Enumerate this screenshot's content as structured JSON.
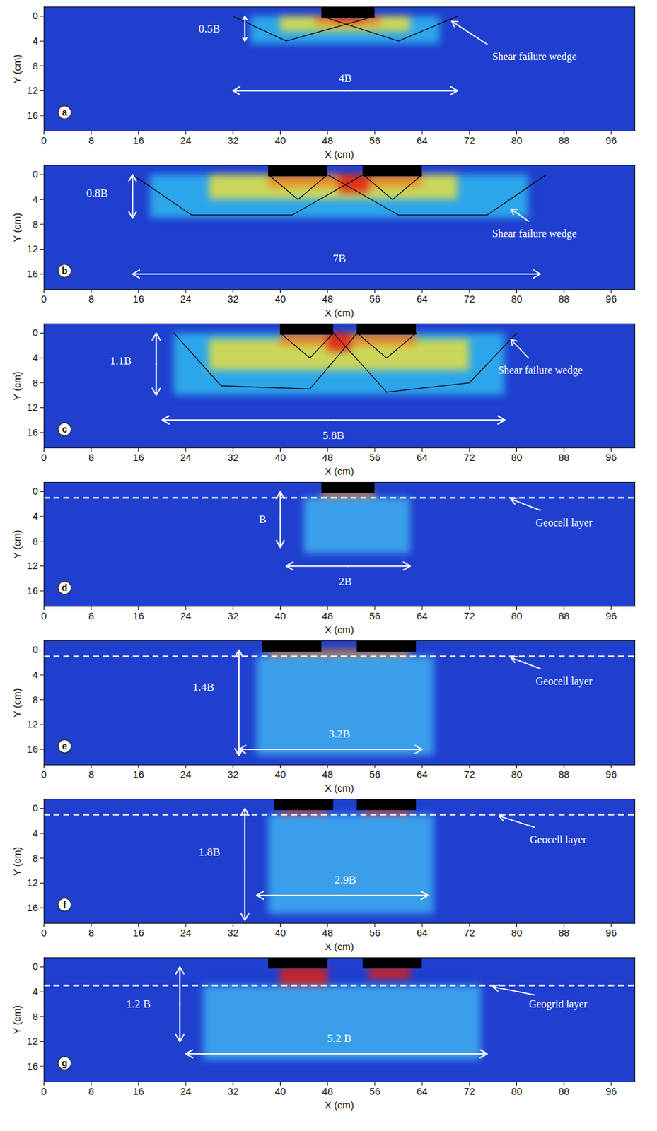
{
  "chart_data": [
    {
      "type": "field",
      "panel": "a",
      "xlabel": "X (cm)",
      "ylabel": "Y (cm)",
      "xlim": [
        0,
        100
      ],
      "ylim": [
        -1.5,
        18.5
      ],
      "xticks": [
        0,
        8,
        16,
        24,
        32,
        40,
        48,
        56,
        64,
        72,
        80,
        88,
        96
      ],
      "yticks": [
        0,
        4,
        8,
        12,
        16
      ],
      "color": "#1f3fcf",
      "zones": [
        {
          "x1": 35,
          "x2": 67,
          "y1": 0,
          "y2": 4.5,
          "color": "#2fb8f0"
        },
        {
          "x1": 40,
          "x2": 62,
          "y1": 0,
          "y2": 2.5,
          "color": "#e8e040"
        },
        {
          "x1": 46,
          "x2": 57,
          "y1": 0,
          "y2": 1.5,
          "color": "#f08020"
        },
        {
          "x1": 49,
          "x2": 54,
          "y1": 0,
          "y2": 1,
          "color": "#e02010"
        }
      ],
      "footings": [
        {
          "x1": 47,
          "x2": 56,
          "y1": -1.5,
          "y2": 0.3
        }
      ],
      "wedges": [
        [
          [
            32,
            0
          ],
          [
            41,
            4
          ],
          [
            56,
            0
          ]
        ],
        [
          [
            47,
            0
          ],
          [
            60,
            4
          ],
          [
            70,
            0
          ]
        ]
      ],
      "dimensions": [
        {
          "label": "0.5B",
          "x1": 34,
          "y1": 0,
          "x2": 34,
          "y2": 4,
          "label_x": 28,
          "label_y": 2
        },
        {
          "label": "4B",
          "x1": 32,
          "x2": 70,
          "y1": 12,
          "y2": 12,
          "label_x": 51,
          "label_y": 10
        }
      ],
      "annotations": [
        {
          "text": "Shear failure wedge",
          "x": 83,
          "y": 6.5,
          "arrow": [
            75,
            4.5,
            69,
            0.8
          ]
        }
      ]
    },
    {
      "type": "field",
      "panel": "b",
      "xlabel": "X (cm)",
      "ylabel": "Y (cm)",
      "xlim": [
        0,
        100
      ],
      "ylim": [
        -1.5,
        18.5
      ],
      "xticks": [
        0,
        8,
        16,
        24,
        32,
        40,
        48,
        56,
        64,
        72,
        80,
        88,
        96
      ],
      "yticks": [
        0,
        4,
        8,
        12,
        16
      ],
      "color": "#1f3fcf",
      "zones": [
        {
          "x1": 18,
          "x2": 82,
          "y1": 0,
          "y2": 7,
          "color": "#2fb8f0"
        },
        {
          "x1": 28,
          "x2": 70,
          "y1": 0,
          "y2": 4,
          "color": "#e8e040"
        },
        {
          "x1": 38,
          "x2": 64,
          "y1": 0,
          "y2": 2,
          "color": "#f08020"
        },
        {
          "x1": 50,
          "x2": 55,
          "y1": 0,
          "y2": 3,
          "color": "#e02010"
        }
      ],
      "footings": [
        {
          "x1": 38,
          "x2": 48,
          "y1": -1.5,
          "y2": 0.3
        },
        {
          "x1": 54,
          "x2": 64,
          "y1": -1.5,
          "y2": 0.3
        }
      ],
      "wedges": [
        [
          [
            15,
            0
          ],
          [
            25,
            6.5
          ],
          [
            42,
            6.5
          ],
          [
            54,
            0
          ]
        ],
        [
          [
            48,
            0
          ],
          [
            60,
            6.5
          ],
          [
            75,
            6.5
          ],
          [
            85,
            0
          ]
        ],
        [
          [
            38,
            0
          ],
          [
            43,
            4
          ],
          [
            48,
            0
          ]
        ],
        [
          [
            54,
            0
          ],
          [
            59,
            4
          ],
          [
            64,
            0
          ]
        ]
      ],
      "dimensions": [
        {
          "label": "0.8B",
          "x1": 15,
          "y1": 0,
          "x2": 15,
          "y2": 7,
          "label_x": 9,
          "label_y": 3
        },
        {
          "label": "7B",
          "x1": 15,
          "x2": 84,
          "y1": 16,
          "y2": 16,
          "label_x": 50,
          "label_y": 13.5
        }
      ],
      "annotations": [
        {
          "text": "Shear failure wedge",
          "x": 83,
          "y": 9.5,
          "arrow": [
            82,
            7.5,
            79,
            5.5
          ]
        }
      ]
    },
    {
      "type": "field",
      "panel": "c",
      "xlabel": "X (cm)",
      "ylabel": "Y (cm)",
      "xlim": [
        0,
        100
      ],
      "ylim": [
        -1.5,
        18.5
      ],
      "xticks": [
        0,
        8,
        16,
        24,
        32,
        40,
        48,
        56,
        64,
        72,
        80,
        88,
        96
      ],
      "yticks": [
        0,
        4,
        8,
        12,
        16
      ],
      "color": "#1f3fcf",
      "zones": [
        {
          "x1": 22,
          "x2": 78,
          "y1": 0,
          "y2": 10,
          "color": "#2fb8f0"
        },
        {
          "x1": 28,
          "x2": 72,
          "y1": 1,
          "y2": 6,
          "color": "#e8e040"
        },
        {
          "x1": 40,
          "x2": 63,
          "y1": 0,
          "y2": 2,
          "color": "#f08020"
        },
        {
          "x1": 48,
          "x2": 52,
          "y1": 0,
          "y2": 3,
          "color": "#e02010"
        }
      ],
      "footings": [
        {
          "x1": 40,
          "x2": 49,
          "y1": -1.5,
          "y2": 0.3
        },
        {
          "x1": 53,
          "x2": 63,
          "y1": -1.5,
          "y2": 0.3
        }
      ],
      "wedges": [
        [
          [
            22,
            0
          ],
          [
            30,
            8.5
          ],
          [
            45,
            9
          ],
          [
            53,
            0
          ]
        ],
        [
          [
            49,
            0
          ],
          [
            58,
            9.5
          ],
          [
            72,
            8
          ],
          [
            80,
            0
          ]
        ],
        [
          [
            40,
            0
          ],
          [
            45,
            4
          ],
          [
            49,
            0
          ]
        ],
        [
          [
            53,
            0
          ],
          [
            58,
            4
          ],
          [
            63,
            0
          ]
        ]
      ],
      "dimensions": [
        {
          "label": "1.1B",
          "x1": 19,
          "y1": 0,
          "x2": 19,
          "y2": 10,
          "label_x": 13,
          "label_y": 4.5
        },
        {
          "label": "5.8B",
          "x1": 20,
          "x2": 78,
          "y1": 14,
          "y2": 14,
          "label_x": 49,
          "label_y": 16.5
        }
      ],
      "annotations": [
        {
          "text": "Shear failure wedge",
          "x": 84,
          "y": 6,
          "arrow": [
            82,
            4,
            79,
            1
          ]
        }
      ]
    },
    {
      "type": "field",
      "panel": "d",
      "xlabel": "X (cm)",
      "ylabel": "Y (cm)",
      "xlim": [
        0,
        100
      ],
      "ylim": [
        -1.5,
        18.5
      ],
      "xticks": [
        0,
        8,
        16,
        24,
        32,
        40,
        48,
        56,
        64,
        72,
        80,
        88,
        96
      ],
      "yticks": [
        0,
        4,
        8,
        12,
        16
      ],
      "color": "#1f3fcf",
      "zones": [
        {
          "x1": 44,
          "x2": 62,
          "y1": 1,
          "y2": 10,
          "color": "#40b0f0"
        },
        {
          "x1": 47,
          "x2": 56,
          "y1": 0,
          "y2": 1,
          "color": "#f08020"
        }
      ],
      "footings": [
        {
          "x1": 47,
          "x2": 56,
          "y1": -1.5,
          "y2": 0.3
        }
      ],
      "wedges": [],
      "layer": {
        "label": "Geocell layer",
        "y": 1,
        "line_style": "dashed"
      },
      "dimensions": [
        {
          "label": "B",
          "x1": 40,
          "y1": 0,
          "x2": 40,
          "y2": 9,
          "label_x": 37,
          "label_y": 4.5
        },
        {
          "label": "2B",
          "x1": 41,
          "x2": 62,
          "y1": 12,
          "y2": 12,
          "label_x": 51,
          "label_y": 14.5
        }
      ],
      "annotations": [
        {
          "text": "Geocell layer",
          "x": 88,
          "y": 5,
          "arrow": [
            84,
            3,
            79,
            1.2
          ]
        }
      ]
    },
    {
      "type": "field",
      "panel": "e",
      "xlabel": "X (cm)",
      "ylabel": "Y (cm)",
      "xlim": [
        0,
        100
      ],
      "ylim": [
        -1.5,
        18.5
      ],
      "xticks": [
        0,
        8,
        16,
        24,
        32,
        40,
        48,
        56,
        64,
        72,
        80,
        88,
        96
      ],
      "yticks": [
        0,
        4,
        8,
        12,
        16
      ],
      "color": "#1f3fcf",
      "zones": [
        {
          "x1": 36,
          "x2": 66,
          "y1": 1,
          "y2": 17,
          "color": "#40b0f0"
        },
        {
          "x1": 38,
          "x2": 62,
          "y1": 0,
          "y2": 1,
          "color": "#f08020"
        }
      ],
      "footings": [
        {
          "x1": 37,
          "x2": 47,
          "y1": -1.5,
          "y2": 0.3
        },
        {
          "x1": 53,
          "x2": 63,
          "y1": -1.5,
          "y2": 0.3
        }
      ],
      "wedges": [],
      "layer": {
        "label": "Geocell layer",
        "y": 1,
        "line_style": "dashed"
      },
      "dimensions": [
        {
          "label": "1.4B",
          "x1": 33,
          "y1": 0,
          "x2": 33,
          "y2": 17,
          "label_x": 27,
          "label_y": 6
        },
        {
          "label": "3.2B",
          "x1": 33,
          "x2": 64,
          "y1": 16,
          "y2": 16,
          "label_x": 50,
          "label_y": 13.5
        }
      ],
      "annotations": [
        {
          "text": "Geocell layer",
          "x": 88,
          "y": 5,
          "arrow": [
            84,
            3,
            79,
            1.2
          ]
        }
      ]
    },
    {
      "type": "field",
      "panel": "f",
      "xlabel": "X (cm)",
      "ylabel": "Y (cm)",
      "xlim": [
        0,
        100
      ],
      "ylim": [
        -1.5,
        18.5
      ],
      "xticks": [
        0,
        8,
        16,
        24,
        32,
        40,
        48,
        56,
        64,
        72,
        80,
        88,
        96
      ],
      "yticks": [
        0,
        4,
        8,
        12,
        16
      ],
      "color": "#1f3fcf",
      "zones": [
        {
          "x1": 38,
          "x2": 66,
          "y1": 1,
          "y2": 17,
          "color": "#40b0f0"
        },
        {
          "x1": 40,
          "x2": 48,
          "y1": 0,
          "y2": 1,
          "color": "#e02010"
        },
        {
          "x1": 54,
          "x2": 62,
          "y1": 0,
          "y2": 1,
          "color": "#e02010"
        }
      ],
      "footings": [
        {
          "x1": 39,
          "x2": 49,
          "y1": -1.5,
          "y2": 0.3
        },
        {
          "x1": 53,
          "x2": 63,
          "y1": -1.5,
          "y2": 0.3
        }
      ],
      "wedges": [],
      "layer": {
        "label": "Geocell layer",
        "y": 1,
        "line_style": "dashed"
      },
      "dimensions": [
        {
          "label": "1.8B",
          "x1": 34,
          "y1": 0,
          "x2": 34,
          "y2": 18,
          "label_x": 28,
          "label_y": 7
        },
        {
          "label": "2.9B",
          "x1": 36,
          "x2": 65,
          "y1": 14,
          "y2": 14,
          "label_x": 51,
          "label_y": 11.5
        }
      ],
      "annotations": [
        {
          "text": "Geocell layer",
          "x": 87,
          "y": 5,
          "arrow": [
            83,
            3,
            77,
            1.2
          ]
        }
      ]
    },
    {
      "type": "field",
      "panel": "g",
      "xlabel": "X (cm)",
      "ylabel": "Y (cm)",
      "xlim": [
        0,
        100
      ],
      "ylim": [
        -1.5,
        18.5
      ],
      "xticks": [
        0,
        8,
        16,
        24,
        32,
        40,
        48,
        56,
        64,
        72,
        80,
        88,
        96
      ],
      "yticks": [
        0,
        4,
        8,
        12,
        16
      ],
      "color": "#1f3fcf",
      "zones": [
        {
          "x1": 27,
          "x2": 74,
          "y1": 3,
          "y2": 15,
          "color": "#40b0f0"
        },
        {
          "x1": 40,
          "x2": 48,
          "y1": 0,
          "y2": 3,
          "color": "#e02010"
        },
        {
          "x1": 55,
          "x2": 62,
          "y1": 0,
          "y2": 2,
          "color": "#e02010"
        }
      ],
      "footings": [
        {
          "x1": 38,
          "x2": 48,
          "y1": -1.5,
          "y2": 0.3
        },
        {
          "x1": 54,
          "x2": 64,
          "y1": -1.5,
          "y2": 0.3
        }
      ],
      "wedges": [],
      "layer": {
        "label": "Geogrid layer",
        "y": 3,
        "line_style": "dashed"
      },
      "dimensions": [
        {
          "label": "1.2 B",
          "x1": 23,
          "y1": 0,
          "x2": 23,
          "y2": 12,
          "label_x": 16,
          "label_y": 6
        },
        {
          "label": "5.2 B",
          "x1": 24,
          "x2": 75,
          "y1": 14,
          "y2": 14,
          "label_x": 50,
          "label_y": 11.5
        }
      ],
      "annotations": [
        {
          "text": "Geogrid layer",
          "x": 87,
          "y": 6,
          "arrow": [
            83,
            4.5,
            76,
            3.2
          ]
        }
      ]
    }
  ]
}
